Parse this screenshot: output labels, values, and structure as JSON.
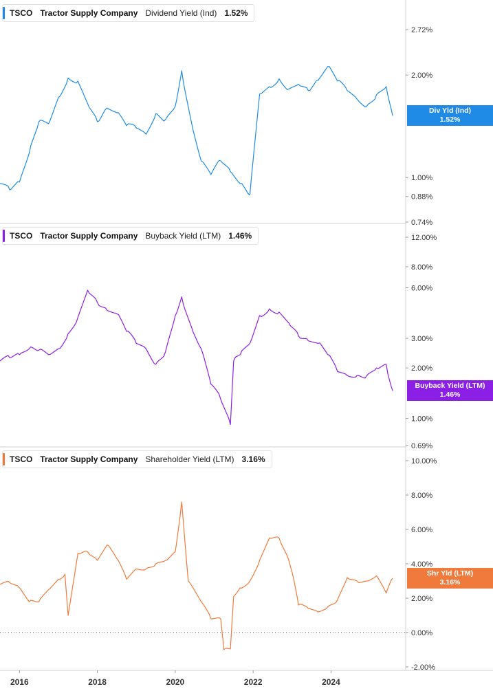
{
  "chart_data": [
    {
      "type": "line",
      "ticker": "TSCO",
      "company": "Tractor Supply Company",
      "metric": "Dividend Yield (Ind)",
      "latest_label": "1.52%",
      "badge_name": "Div Yld (Ind)",
      "badge_value": "1.52%",
      "color": "#1f8be6",
      "scale": "log",
      "ylim": [
        0.74,
        3.0
      ],
      "yticks": [
        {
          "v": 2.72,
          "label": "2.72%"
        },
        {
          "v": 2.0,
          "label": "2.00%"
        },
        {
          "v": 1.0,
          "label": "1.00%"
        },
        {
          "v": 0.88,
          "label": "0.88%"
        },
        {
          "v": 0.74,
          "label": "0.74%"
        }
      ],
      "x": [
        "2015-07",
        "2015-10",
        "2016-01",
        "2016-04",
        "2016-07",
        "2016-10",
        "2017-01",
        "2017-04",
        "2017-07",
        "2017-10",
        "2018-01",
        "2018-04",
        "2018-07",
        "2018-10",
        "2019-01",
        "2019-04",
        "2019-07",
        "2019-10",
        "2020-01",
        "2020-03",
        "2020-06",
        "2020-09",
        "2020-12",
        "2021-03",
        "2021-06",
        "2021-09",
        "2021-12",
        "2022-03",
        "2022-06",
        "2022-09",
        "2022-12",
        "2023-03",
        "2023-06",
        "2023-09",
        "2023-12",
        "2024-03",
        "2024-06",
        "2024-09",
        "2024-12",
        "2025-03",
        "2025-06",
        "2025-08"
      ],
      "y": [
        0.96,
        0.92,
        0.97,
        1.18,
        1.46,
        1.44,
        1.72,
        1.96,
        1.92,
        1.65,
        1.46,
        1.6,
        1.55,
        1.42,
        1.4,
        1.34,
        1.54,
        1.48,
        1.62,
        2.06,
        1.45,
        1.12,
        1.02,
        1.12,
        1.04,
        0.96,
        0.89,
        1.76,
        1.85,
        1.95,
        1.82,
        1.88,
        1.8,
        1.93,
        2.12,
        1.92,
        1.8,
        1.7,
        1.62,
        1.75,
        1.85,
        1.52
      ]
    },
    {
      "type": "line",
      "ticker": "TSCO",
      "company": "Tractor Supply Company",
      "metric": "Buyback Yield (LTM)",
      "latest_label": "1.46%",
      "badge_name": "Buyback Yield (LTM)",
      "badge_value": "1.46%",
      "color": "#8b1fe6",
      "scale": "log",
      "ylim": [
        0.69,
        12.0
      ],
      "yticks": [
        {
          "v": 12.0,
          "label": "12.00%"
        },
        {
          "v": 8.0,
          "label": "8.00%"
        },
        {
          "v": 6.0,
          "label": "6.00%"
        },
        {
          "v": 3.0,
          "label": "3.00%"
        },
        {
          "v": 2.0,
          "label": "2.00%"
        },
        {
          "v": 1.0,
          "label": "1.00%"
        },
        {
          "v": 0.69,
          "label": "0.69%"
        }
      ],
      "x": [
        "2015-07",
        "2015-10",
        "2016-01",
        "2016-04",
        "2016-07",
        "2016-10",
        "2017-01",
        "2017-04",
        "2017-07",
        "2017-10",
        "2018-01",
        "2018-04",
        "2018-07",
        "2018-10",
        "2019-01",
        "2019-04",
        "2019-07",
        "2019-10",
        "2020-01",
        "2020-03",
        "2020-06",
        "2020-09",
        "2020-12",
        "2021-03",
        "2021-06",
        "2021-07",
        "2021-09",
        "2021-12",
        "2022-03",
        "2022-06",
        "2022-09",
        "2022-12",
        "2023-03",
        "2023-06",
        "2023-09",
        "2023-12",
        "2024-03",
        "2024-06",
        "2024-09",
        "2024-12",
        "2025-03",
        "2025-06",
        "2025-08"
      ],
      "y": [
        2.2,
        2.3,
        2.4,
        2.6,
        2.55,
        2.4,
        2.6,
        3.2,
        4.0,
        5.8,
        4.9,
        4.4,
        4.2,
        3.3,
        2.8,
        2.6,
        2.1,
        2.5,
        4.1,
        5.3,
        3.5,
        2.6,
        1.6,
        1.3,
        0.92,
        2.2,
        2.4,
        2.8,
        4.1,
        4.5,
        4.3,
        3.7,
        3.1,
        2.9,
        2.8,
        2.4,
        1.9,
        1.8,
        1.8,
        1.8,
        2.0,
        2.1,
        1.46
      ]
    },
    {
      "type": "line",
      "ticker": "TSCO",
      "company": "Tractor Supply Company",
      "metric": "Shareholder Yield (LTM)",
      "latest_label": "3.16%",
      "badge_name": "Shr Yld (LTM)",
      "badge_value": "3.16%",
      "color": "#f07a3c",
      "scale": "linear",
      "ylim": [
        -2.0,
        10.0
      ],
      "zero_line": true,
      "yticks": [
        {
          "v": 10.0,
          "label": "10.00%"
        },
        {
          "v": 8.0,
          "label": "8.00%"
        },
        {
          "v": 6.0,
          "label": "6.00%"
        },
        {
          "v": 4.0,
          "label": "4.00%"
        },
        {
          "v": 2.0,
          "label": "2.00%"
        },
        {
          "v": 0.0,
          "label": "0.00%"
        },
        {
          "v": -2.0,
          "label": "-2.00%"
        }
      ],
      "x": [
        "2015-07",
        "2015-10",
        "2016-01",
        "2016-04",
        "2016-07",
        "2016-10",
        "2017-01",
        "2017-03",
        "2017-04",
        "2017-07",
        "2017-10",
        "2018-01",
        "2018-04",
        "2018-07",
        "2018-10",
        "2019-01",
        "2019-04",
        "2019-07",
        "2019-10",
        "2020-01",
        "2020-03",
        "2020-05",
        "2020-09",
        "2020-12",
        "2021-03",
        "2021-04",
        "2021-06",
        "2021-07",
        "2021-09",
        "2021-12",
        "2022-03",
        "2022-06",
        "2022-09",
        "2022-12",
        "2023-01",
        "2023-03",
        "2023-06",
        "2023-09",
        "2023-12",
        "2024-03",
        "2024-06",
        "2024-09",
        "2024-12",
        "2025-03",
        "2025-06",
        "2025-08"
      ],
      "y": [
        2.8,
        2.9,
        2.6,
        1.8,
        1.8,
        2.5,
        3.1,
        3.4,
        1.0,
        4.6,
        4.7,
        4.2,
        5.1,
        4.3,
        3.1,
        3.7,
        3.7,
        4.0,
        4.2,
        4.7,
        7.6,
        3.0,
        1.8,
        0.8,
        0.8,
        -1.0,
        -0.95,
        2.1,
        2.6,
        3.0,
        4.2,
        5.5,
        5.5,
        4.2,
        3.5,
        1.6,
        1.4,
        1.2,
        1.5,
        1.9,
        3.2,
        3.0,
        3.0,
        3.3,
        2.3,
        3.16
      ]
    }
  ],
  "x_axis": {
    "ticks": [
      {
        "date": "2016-01",
        "label": "2016"
      },
      {
        "date": "2018-01",
        "label": "2018"
      },
      {
        "date": "2020-01",
        "label": "2020"
      },
      {
        "date": "2022-01",
        "label": "2022"
      },
      {
        "date": "2024-01",
        "label": "2024"
      }
    ],
    "start": "2015-07",
    "end": "2025-12"
  }
}
